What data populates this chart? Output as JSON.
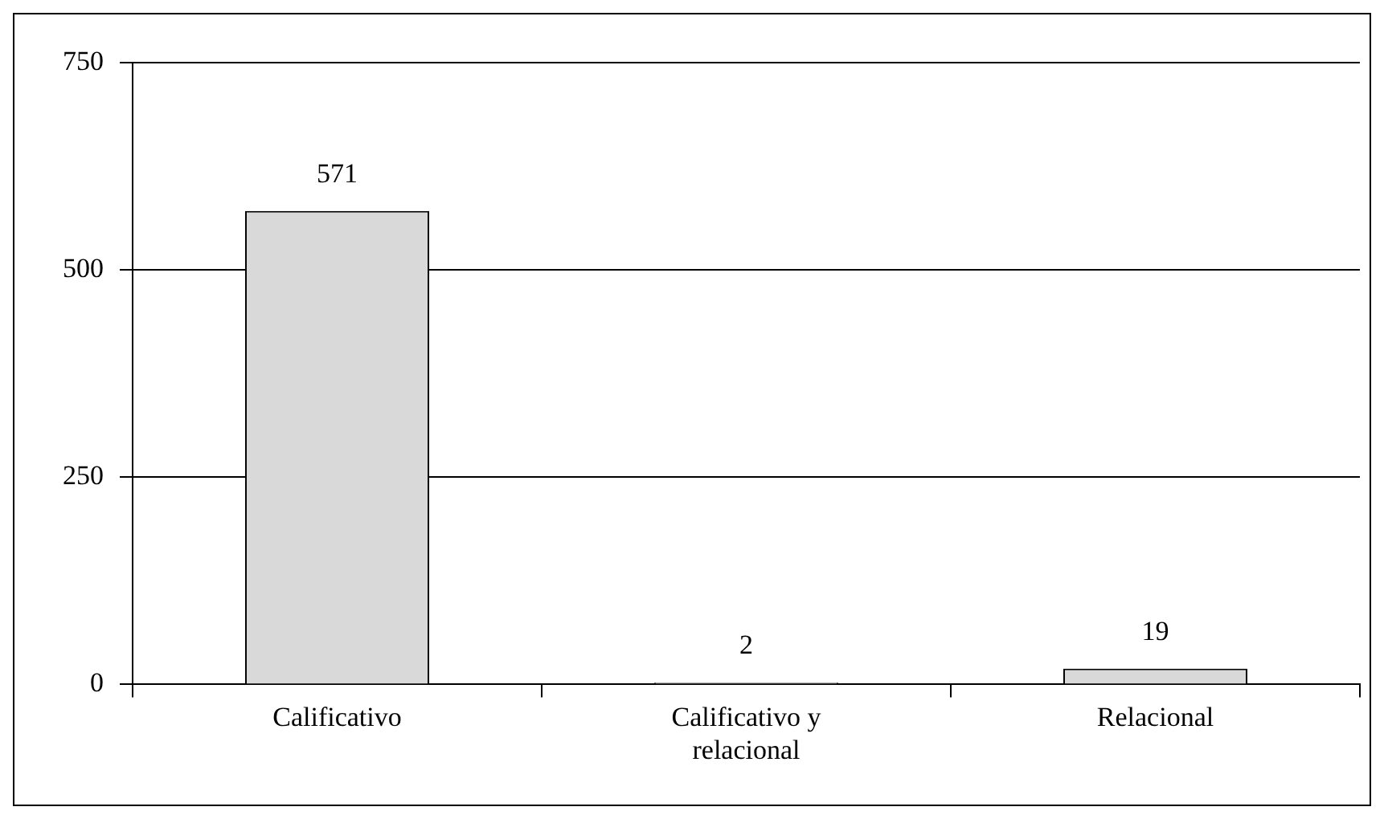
{
  "chart_data": {
    "type": "bar",
    "categories": [
      "Calificativo",
      "Calificativo y relacional",
      "Relacional"
    ],
    "values": [
      571,
      2,
      19
    ],
    "color": "#d9d9d9",
    "ylim": [
      0,
      750
    ],
    "yticks": [
      0,
      250,
      500,
      750
    ],
    "grid": "y",
    "data_labels": true,
    "legend": false
  }
}
